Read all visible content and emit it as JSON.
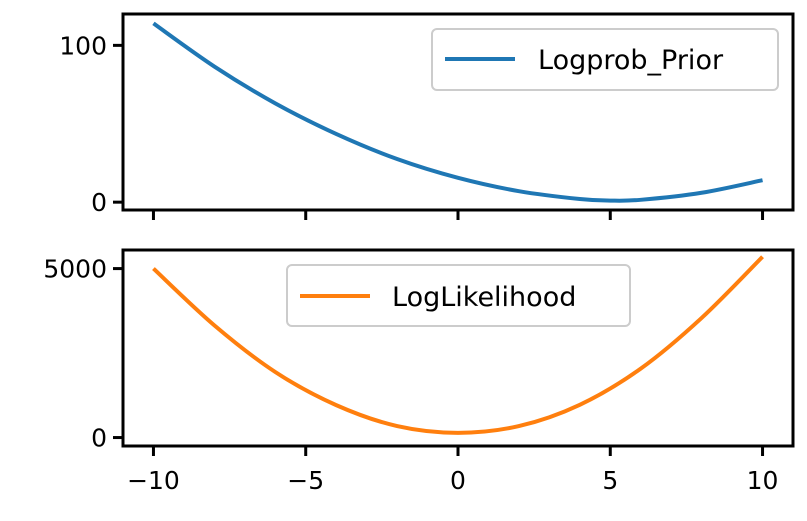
{
  "chart_data": [
    {
      "type": "line",
      "title": "",
      "xlabel": "",
      "ylabel": "",
      "xlim": [
        -11,
        11
      ],
      "ylim": [
        -5,
        120
      ],
      "yticks": [
        0,
        100
      ],
      "ytick_labels": [
        "0",
        "100"
      ],
      "xticks": [
        -10,
        -5,
        0,
        5,
        10
      ],
      "xtick_labels_visible": false,
      "grid": false,
      "legend_position": "upper right",
      "series": [
        {
          "name": "Logprob_Prior",
          "color": "#1f77b4",
          "x": [
            -10,
            -8,
            -6,
            -4,
            -2,
            0,
            2,
            4,
            5,
            6,
            8,
            10
          ],
          "y": [
            114,
            86.5,
            63,
            43.5,
            27.5,
            15.5,
            7,
            2,
            1,
            1.5,
            6,
            14
          ]
        }
      ]
    },
    {
      "type": "line",
      "title": "",
      "xlabel": "",
      "ylabel": "",
      "xlim": [
        -11,
        11
      ],
      "ylim": [
        -250,
        5550
      ],
      "yticks": [
        0,
        5000
      ],
      "ytick_labels": [
        "0",
        "5000"
      ],
      "xticks": [
        -10,
        -5,
        0,
        5,
        10
      ],
      "xtick_labels": [
        "−10",
        "−5",
        "0",
        "5",
        "10"
      ],
      "grid": false,
      "legend_position": "upper center",
      "series": [
        {
          "name": "LogLikelihood",
          "color": "#ff7f0e",
          "x": [
            -10,
            -8,
            -6,
            -4,
            -2,
            0,
            2,
            4,
            6,
            8,
            10
          ],
          "y": [
            5000,
            3320,
            1940,
            960,
            340,
            140,
            340,
            970,
            2040,
            3540,
            5350
          ]
        }
      ]
    }
  ]
}
